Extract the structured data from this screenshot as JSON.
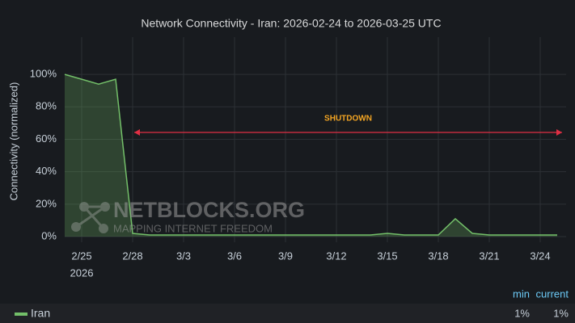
{
  "chart_data": {
    "type": "line",
    "title": "Network Connectivity - Iran: 2026-02-24 to 2026-03-25 UTC",
    "y_label": "Connectivity (normalized)",
    "x": [
      "2026-02-24",
      "2026-02-25",
      "2026-02-26",
      "2026-02-27",
      "2026-02-28",
      "2026-03-01",
      "2026-03-02",
      "2026-03-03",
      "2026-03-04",
      "2026-03-05",
      "2026-03-06",
      "2026-03-07",
      "2026-03-08",
      "2026-03-09",
      "2026-03-10",
      "2026-03-11",
      "2026-03-12",
      "2026-03-13",
      "2026-03-14",
      "2026-03-15",
      "2026-03-16",
      "2026-03-17",
      "2026-03-18",
      "2026-03-19",
      "2026-03-20",
      "2026-03-21",
      "2026-03-22",
      "2026-03-23",
      "2026-03-24",
      "2026-03-25"
    ],
    "series": [
      {
        "name": "Iran",
        "color": "#73bf69",
        "values": [
          100,
          97,
          94,
          97,
          2,
          1,
          1,
          1,
          1,
          1,
          1,
          1,
          1,
          1,
          1,
          1,
          1,
          1,
          1,
          2,
          1,
          1,
          1,
          11,
          2,
          1,
          1,
          1,
          1,
          1
        ],
        "stats": [
          {
            "value": 1,
            "label": "1%"
          },
          {
            "value": 1,
            "label": "1%"
          }
        ]
      }
    ],
    "stat_columns": [
      "min",
      "current"
    ],
    "xlim": [
      "2026-02-24",
      "2026-03-25"
    ],
    "xticks": [
      {
        "value": "2026-02-25",
        "label": "2/25"
      },
      {
        "value": "2026-02-28",
        "label": "2/28"
      },
      {
        "value": "2026-03-03",
        "label": "3/3"
      },
      {
        "value": "2026-03-06",
        "label": "3/6"
      },
      {
        "value": "2026-03-09",
        "label": "3/9"
      },
      {
        "value": "2026-03-12",
        "label": "3/12"
      },
      {
        "value": "2026-03-15",
        "label": "3/15"
      },
      {
        "value": "2026-03-18",
        "label": "3/18"
      },
      {
        "value": "2026-03-21",
        "label": "3/21"
      },
      {
        "value": "2026-03-24",
        "label": "3/24"
      }
    ],
    "x_year_label": "2026",
    "ylim": [
      0,
      113
    ],
    "yticks": [
      {
        "value": 0,
        "label": "0%"
      },
      {
        "value": 20,
        "label": "20%"
      },
      {
        "value": 40,
        "label": "40%"
      },
      {
        "value": 60,
        "label": "60%"
      },
      {
        "value": 80,
        "label": "80%"
      },
      {
        "value": 100,
        "label": "100%"
      }
    ],
    "grid": true,
    "annotation": "SHUTDOWN",
    "watermark": {
      "title": "NETBLOCKS.ORG",
      "subtitle": "MAPPING INTERNET FREEDOM"
    }
  }
}
